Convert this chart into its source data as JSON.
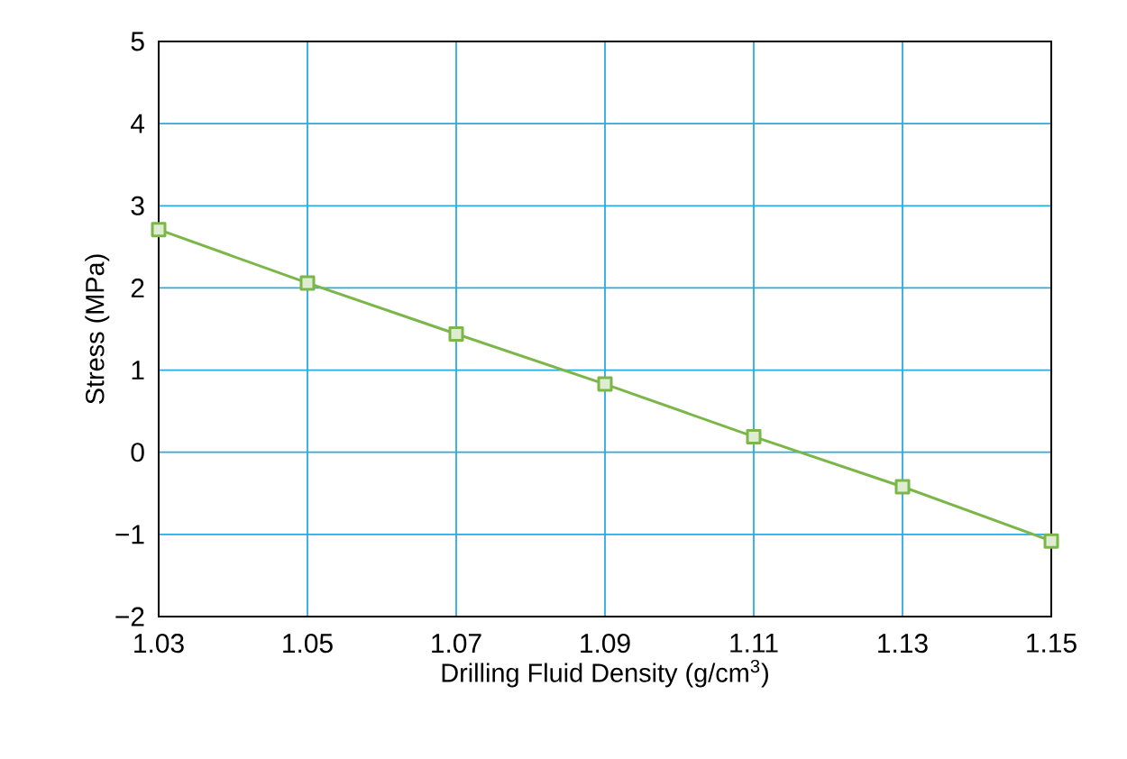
{
  "chart_data": {
    "type": "line",
    "xlabel": "Drilling Fluid Density (g/cm$^{3}$)",
    "ylabel": "Stress (MPa)",
    "x": [
      1.03,
      1.05,
      1.07,
      1.09,
      1.11,
      1.13,
      1.15
    ],
    "series": [
      {
        "color": "#7ab648",
        "values": [
          2.71,
          2.06,
          1.44,
          0.83,
          0.19,
          -0.42,
          -1.08
        ]
      }
    ],
    "xlim": [
      1.03,
      1.15
    ],
    "xticks": [
      1.03,
      1.05,
      1.07,
      1.09,
      1.11,
      1.13,
      1.15
    ],
    "ylim": [
      -2,
      5
    ],
    "yticks": [
      {
        "value": -2,
        "label": "−2"
      },
      {
        "value": -1,
        "label": "−1"
      },
      0,
      1,
      2,
      3,
      4,
      5
    ],
    "grid": true,
    "marker": "square",
    "line_style": "solid"
  }
}
